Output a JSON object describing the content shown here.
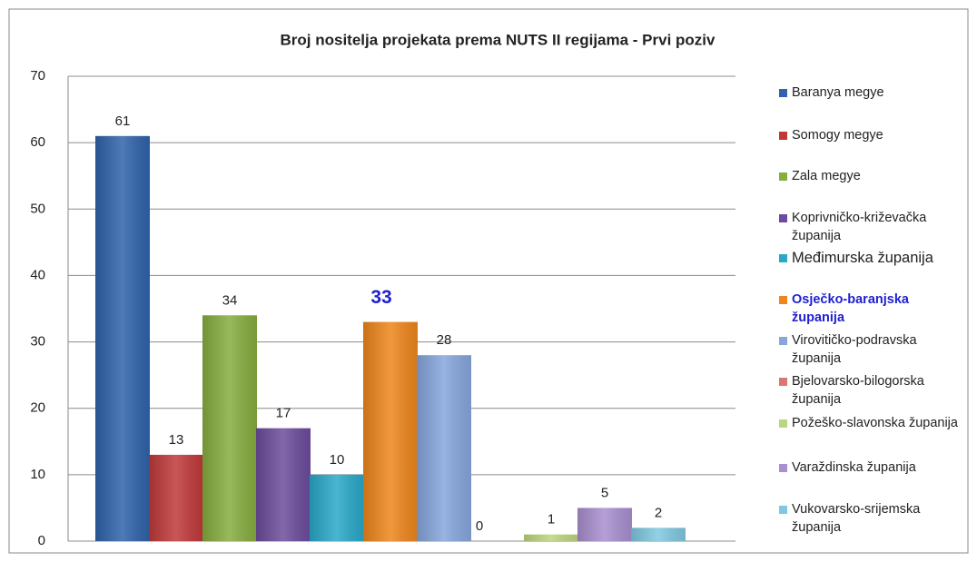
{
  "chart_data": {
    "type": "bar",
    "title": "Broj  nositelja projekata  prema NUTS II regijama - Prvi poziv",
    "ylim": [
      0,
      70
    ],
    "yticks": [
      0,
      10,
      20,
      30,
      40,
      50,
      60,
      70
    ],
    "grid": true,
    "legend": "right",
    "series": [
      {
        "name": "Baranya megye",
        "color": "#2f63aa",
        "values": [
          61
        ]
      },
      {
        "name": "Somogy megye",
        "color": "#c0393a",
        "values": [
          13
        ]
      },
      {
        "name": "Zala megye",
        "color": "#86ad3f",
        "values": [
          34
        ]
      },
      {
        "name": "Koprivničko-križevačka županija",
        "color": "#6c4c9c",
        "values": [
          17
        ]
      },
      {
        "name": "Međimurska županija",
        "color": "#2aa8c8",
        "values": [
          10
        ]
      },
      {
        "name": "Osječko-baranjska županija",
        "color": "#ee861c",
        "values": [
          33
        ]
      },
      {
        "name": "Virovitičko-podravska županija",
        "color": "#86a6dc",
        "values": [
          28
        ]
      },
      {
        "name": "Bjelovarsko-bilogorska županija",
        "color": "#dc7676",
        "values": [
          0
        ]
      },
      {
        "name": "Požeško-slavonska županija",
        "color": "#bcd67e",
        "values": [
          1
        ]
      },
      {
        "name": "Varaždinska županija",
        "color": "#a88fcf",
        "values": [
          5
        ]
      },
      {
        "name": "Vukovarsko-srijemska županija",
        "color": "#80c8e0",
        "values": [
          2
        ]
      }
    ]
  }
}
